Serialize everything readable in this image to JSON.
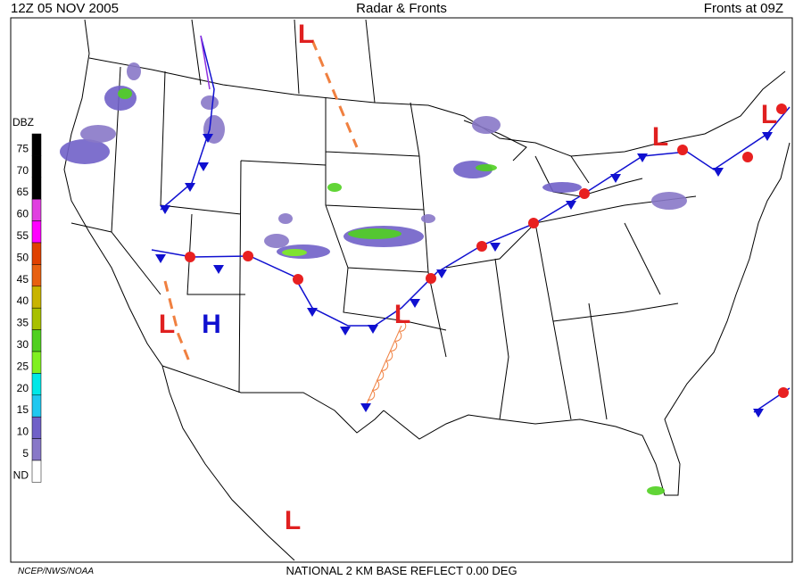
{
  "header": {
    "left": "12Z  05 NOV  2005",
    "center": "Radar & Fronts",
    "right": "Fronts at 09Z"
  },
  "legend": {
    "title": "DBZ",
    "levels": [
      {
        "label": "75",
        "color": "#000000"
      },
      {
        "label": "70",
        "color": "#000000"
      },
      {
        "label": "65",
        "color": "#000000"
      },
      {
        "label": "60",
        "color": "#e040e0"
      },
      {
        "label": "55",
        "color": "#ff00ff"
      },
      {
        "label": "50",
        "color": "#e04000"
      },
      {
        "label": "45",
        "color": "#e86010"
      },
      {
        "label": "40",
        "color": "#c8b400"
      },
      {
        "label": "35",
        "color": "#a8c000"
      },
      {
        "label": "30",
        "color": "#50d020"
      },
      {
        "label": "25",
        "color": "#80f020"
      },
      {
        "label": "20",
        "color": "#00e8e8"
      },
      {
        "label": "15",
        "color": "#20c8f0"
      },
      {
        "label": "10",
        "color": "#7060c8"
      },
      {
        "label": "5",
        "color": "#8878c8"
      },
      {
        "label": "ND",
        "color": "#ffffff"
      }
    ]
  },
  "pressure_centers": [
    {
      "label": "L",
      "color": "#e02020"
    },
    {
      "label": "L",
      "color": "#e02020"
    },
    {
      "label": "L",
      "color": "#e02020"
    },
    {
      "label": "L",
      "color": "#e02020"
    },
    {
      "label": "H",
      "color": "#1010d0"
    },
    {
      "label": "L",
      "color": "#e02020"
    },
    {
      "label": "L",
      "color": "#e02020"
    }
  ],
  "footer": {
    "credit": "NCEP/NWS/NOAA",
    "caption": "NATIONAL 2 KM BASE REFLECT 0.00 DEG"
  }
}
